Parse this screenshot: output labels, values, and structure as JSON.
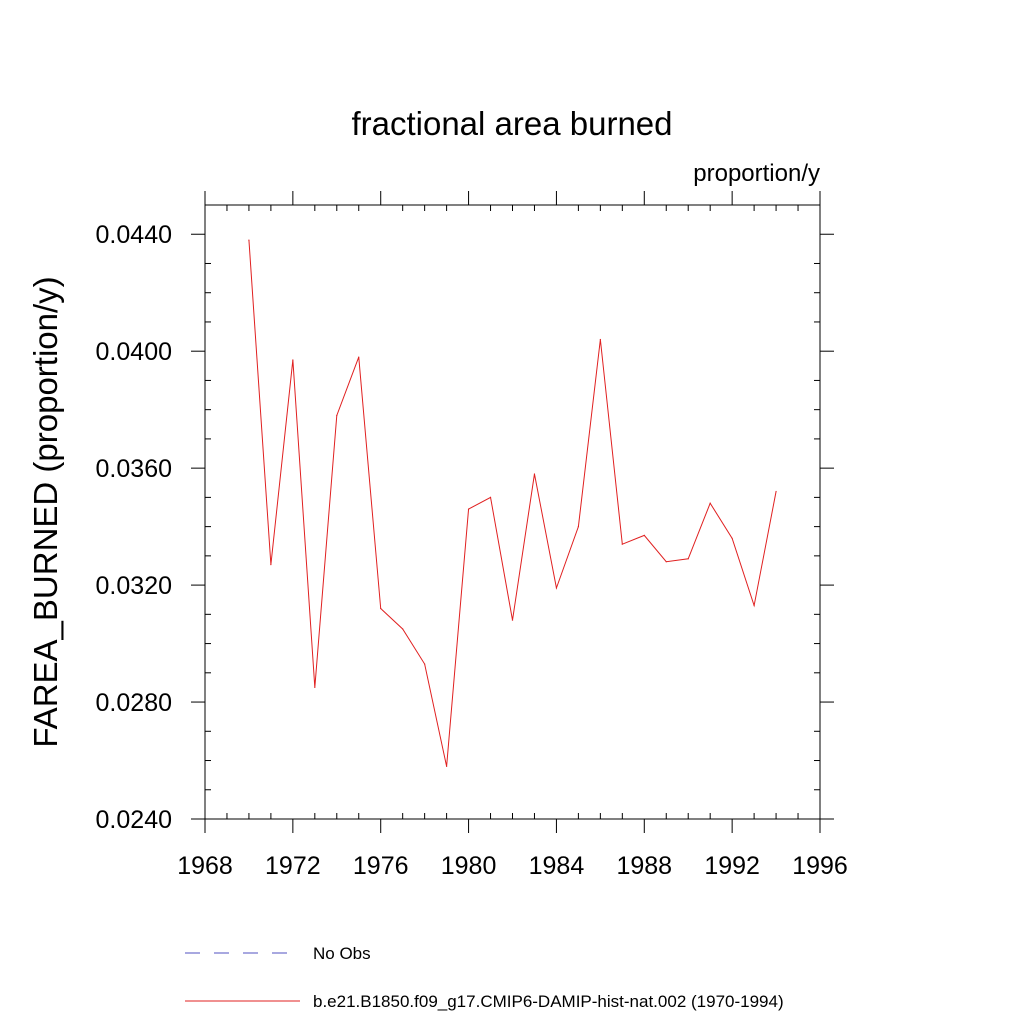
{
  "chart_data": {
    "type": "line",
    "title": "fractional area burned",
    "subtitle": "proportion/y",
    "xlabel": "",
    "ylabel": "FAREA_BURNED  (proportion/y)",
    "xlim": [
      1968,
      1996
    ],
    "ylim": [
      0.024,
      0.045
    ],
    "xticks": [
      1968,
      1972,
      1976,
      1980,
      1984,
      1988,
      1992,
      1996
    ],
    "yticks": [
      "0.0240",
      "0.0280",
      "0.0320",
      "0.0360",
      "0.0400",
      "0.0440"
    ],
    "yticks_values": [
      0.024,
      0.028,
      0.032,
      0.036,
      0.04,
      0.044
    ],
    "grid": false,
    "legend_position": "bottom",
    "series": [
      {
        "name": "No Obs",
        "style": "dashed",
        "color": "#5050c0",
        "x": [],
        "values": []
      },
      {
        "name": "b.e21.B1850.f09_g17.CMIP6-DAMIP-hist-nat.002 (1970-1994)",
        "style": "solid",
        "color": "#e02020",
        "x": [
          1970,
          1971,
          1972,
          1973,
          1974,
          1975,
          1976,
          1977,
          1978,
          1979,
          1980,
          1981,
          1982,
          1983,
          1984,
          1985,
          1986,
          1987,
          1988,
          1989,
          1990,
          1991,
          1992,
          1993,
          1994
        ],
        "values": [
          0.0438,
          0.0327,
          0.0397,
          0.0285,
          0.0378,
          0.0398,
          0.0312,
          0.0305,
          0.0293,
          0.0258,
          0.0346,
          0.035,
          0.0308,
          0.0358,
          0.0319,
          0.034,
          0.0404,
          0.0334,
          0.0337,
          0.0328,
          0.0329,
          0.0348,
          0.0336,
          0.0313,
          0.0352
        ]
      }
    ]
  }
}
